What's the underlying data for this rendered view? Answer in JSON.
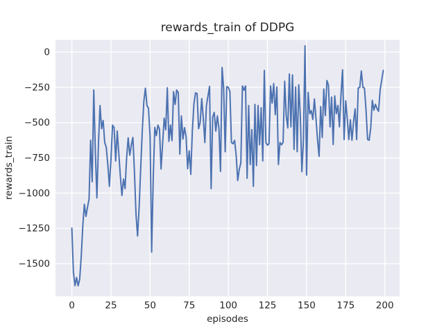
{
  "chart_data": {
    "type": "line",
    "title": "rewards_train of DDPG",
    "xlabel": "episodes",
    "ylabel": "rewards_train",
    "legend": null,
    "grid": true,
    "xlim": [
      -10.45,
      209.45
    ],
    "ylim": [
      -1732,
      86
    ],
    "xticks": [
      {
        "value": 0,
        "label": "0"
      },
      {
        "value": 25,
        "label": "25"
      },
      {
        "value": 50,
        "label": "50"
      },
      {
        "value": 75,
        "label": "75"
      },
      {
        "value": 100,
        "label": "100"
      },
      {
        "value": 125,
        "label": "125"
      },
      {
        "value": 150,
        "label": "150"
      },
      {
        "value": 175,
        "label": "175"
      },
      {
        "value": 200,
        "label": "200"
      }
    ],
    "yticks": [
      {
        "value": 0,
        "label": "0"
      },
      {
        "value": -250,
        "label": "−250"
      },
      {
        "value": -500,
        "label": "−500"
      },
      {
        "value": -750,
        "label": "−750"
      },
      {
        "value": -1000,
        "label": "−1000"
      },
      {
        "value": -1250,
        "label": "−1250"
      },
      {
        "value": -1500,
        "label": "−1500"
      }
    ],
    "x_start": 0,
    "x_step": 1,
    "series": [
      {
        "name": "rewards_train",
        "color": "#4C72B0",
        "values": [
          -1248,
          -1560,
          -1656,
          -1598,
          -1657,
          -1610,
          -1450,
          -1230,
          -1079,
          -1165,
          -1100,
          -1042,
          -625,
          -919,
          -268,
          -700,
          -1034,
          -650,
          -379,
          -543,
          -485,
          -641,
          -675,
          -800,
          -952,
          -760,
          -518,
          -534,
          -772,
          -560,
          -720,
          -880,
          -1017,
          -900,
          -968,
          -750,
          -608,
          -731,
          -660,
          -605,
          -850,
          -1150,
          -1304,
          -1100,
          -820,
          -560,
          -350,
          -256,
          -379,
          -400,
          -600,
          -1418,
          -900,
          -534,
          -592,
          -518,
          -545,
          -829,
          -650,
          -469,
          -551,
          -253,
          -633,
          -518,
          -628,
          -281,
          -371,
          -269,
          -288,
          -723,
          -453,
          -616,
          -536,
          -600,
          -827,
          -700,
          -867,
          -560,
          -370,
          -289,
          -293,
          -543,
          -500,
          -330,
          -470,
          -641,
          -379,
          -310,
          -243,
          -968,
          -461,
          -428,
          -560,
          -453,
          -543,
          -846,
          -109,
          -256,
          -706,
          -245,
          -250,
          -280,
          -641,
          -650,
          -626,
          -731,
          -911,
          -830,
          -786,
          -240,
          -270,
          -240,
          -895,
          -379,
          -797,
          -550,
          -952,
          -371,
          -804,
          -379,
          -657,
          -395,
          -772,
          -130,
          -641,
          -660,
          -650,
          -240,
          -362,
          -223,
          -444,
          -248,
          -797,
          -641,
          -657,
          -640,
          -207,
          -450,
          -538,
          -155,
          -530,
          -162,
          -690,
          -248,
          -706,
          -232,
          -450,
          -848,
          -620,
          45,
          -872,
          -286,
          -437,
          -415,
          -477,
          -333,
          -470,
          -620,
          -739,
          -387,
          -605,
          -262,
          -450,
          -202,
          -235,
          -530,
          -319,
          -655,
          -311,
          -437,
          -378,
          -530,
          -300,
          -126,
          -620,
          -345,
          -470,
          -620,
          -480,
          -625,
          -496,
          -403,
          -620,
          -255,
          -250,
          -134,
          -250,
          -255,
          -412,
          -620,
          -625,
          -538,
          -342,
          -412,
          -370,
          -400,
          -420,
          -270,
          -200,
          -130
        ]
      }
    ],
    "colors": {
      "line": "#4C72B0",
      "axes_background": "#EAEAF2",
      "grid": "#FFFFFF",
      "text": "#262626",
      "figure_background": "#FFFFFF"
    }
  }
}
